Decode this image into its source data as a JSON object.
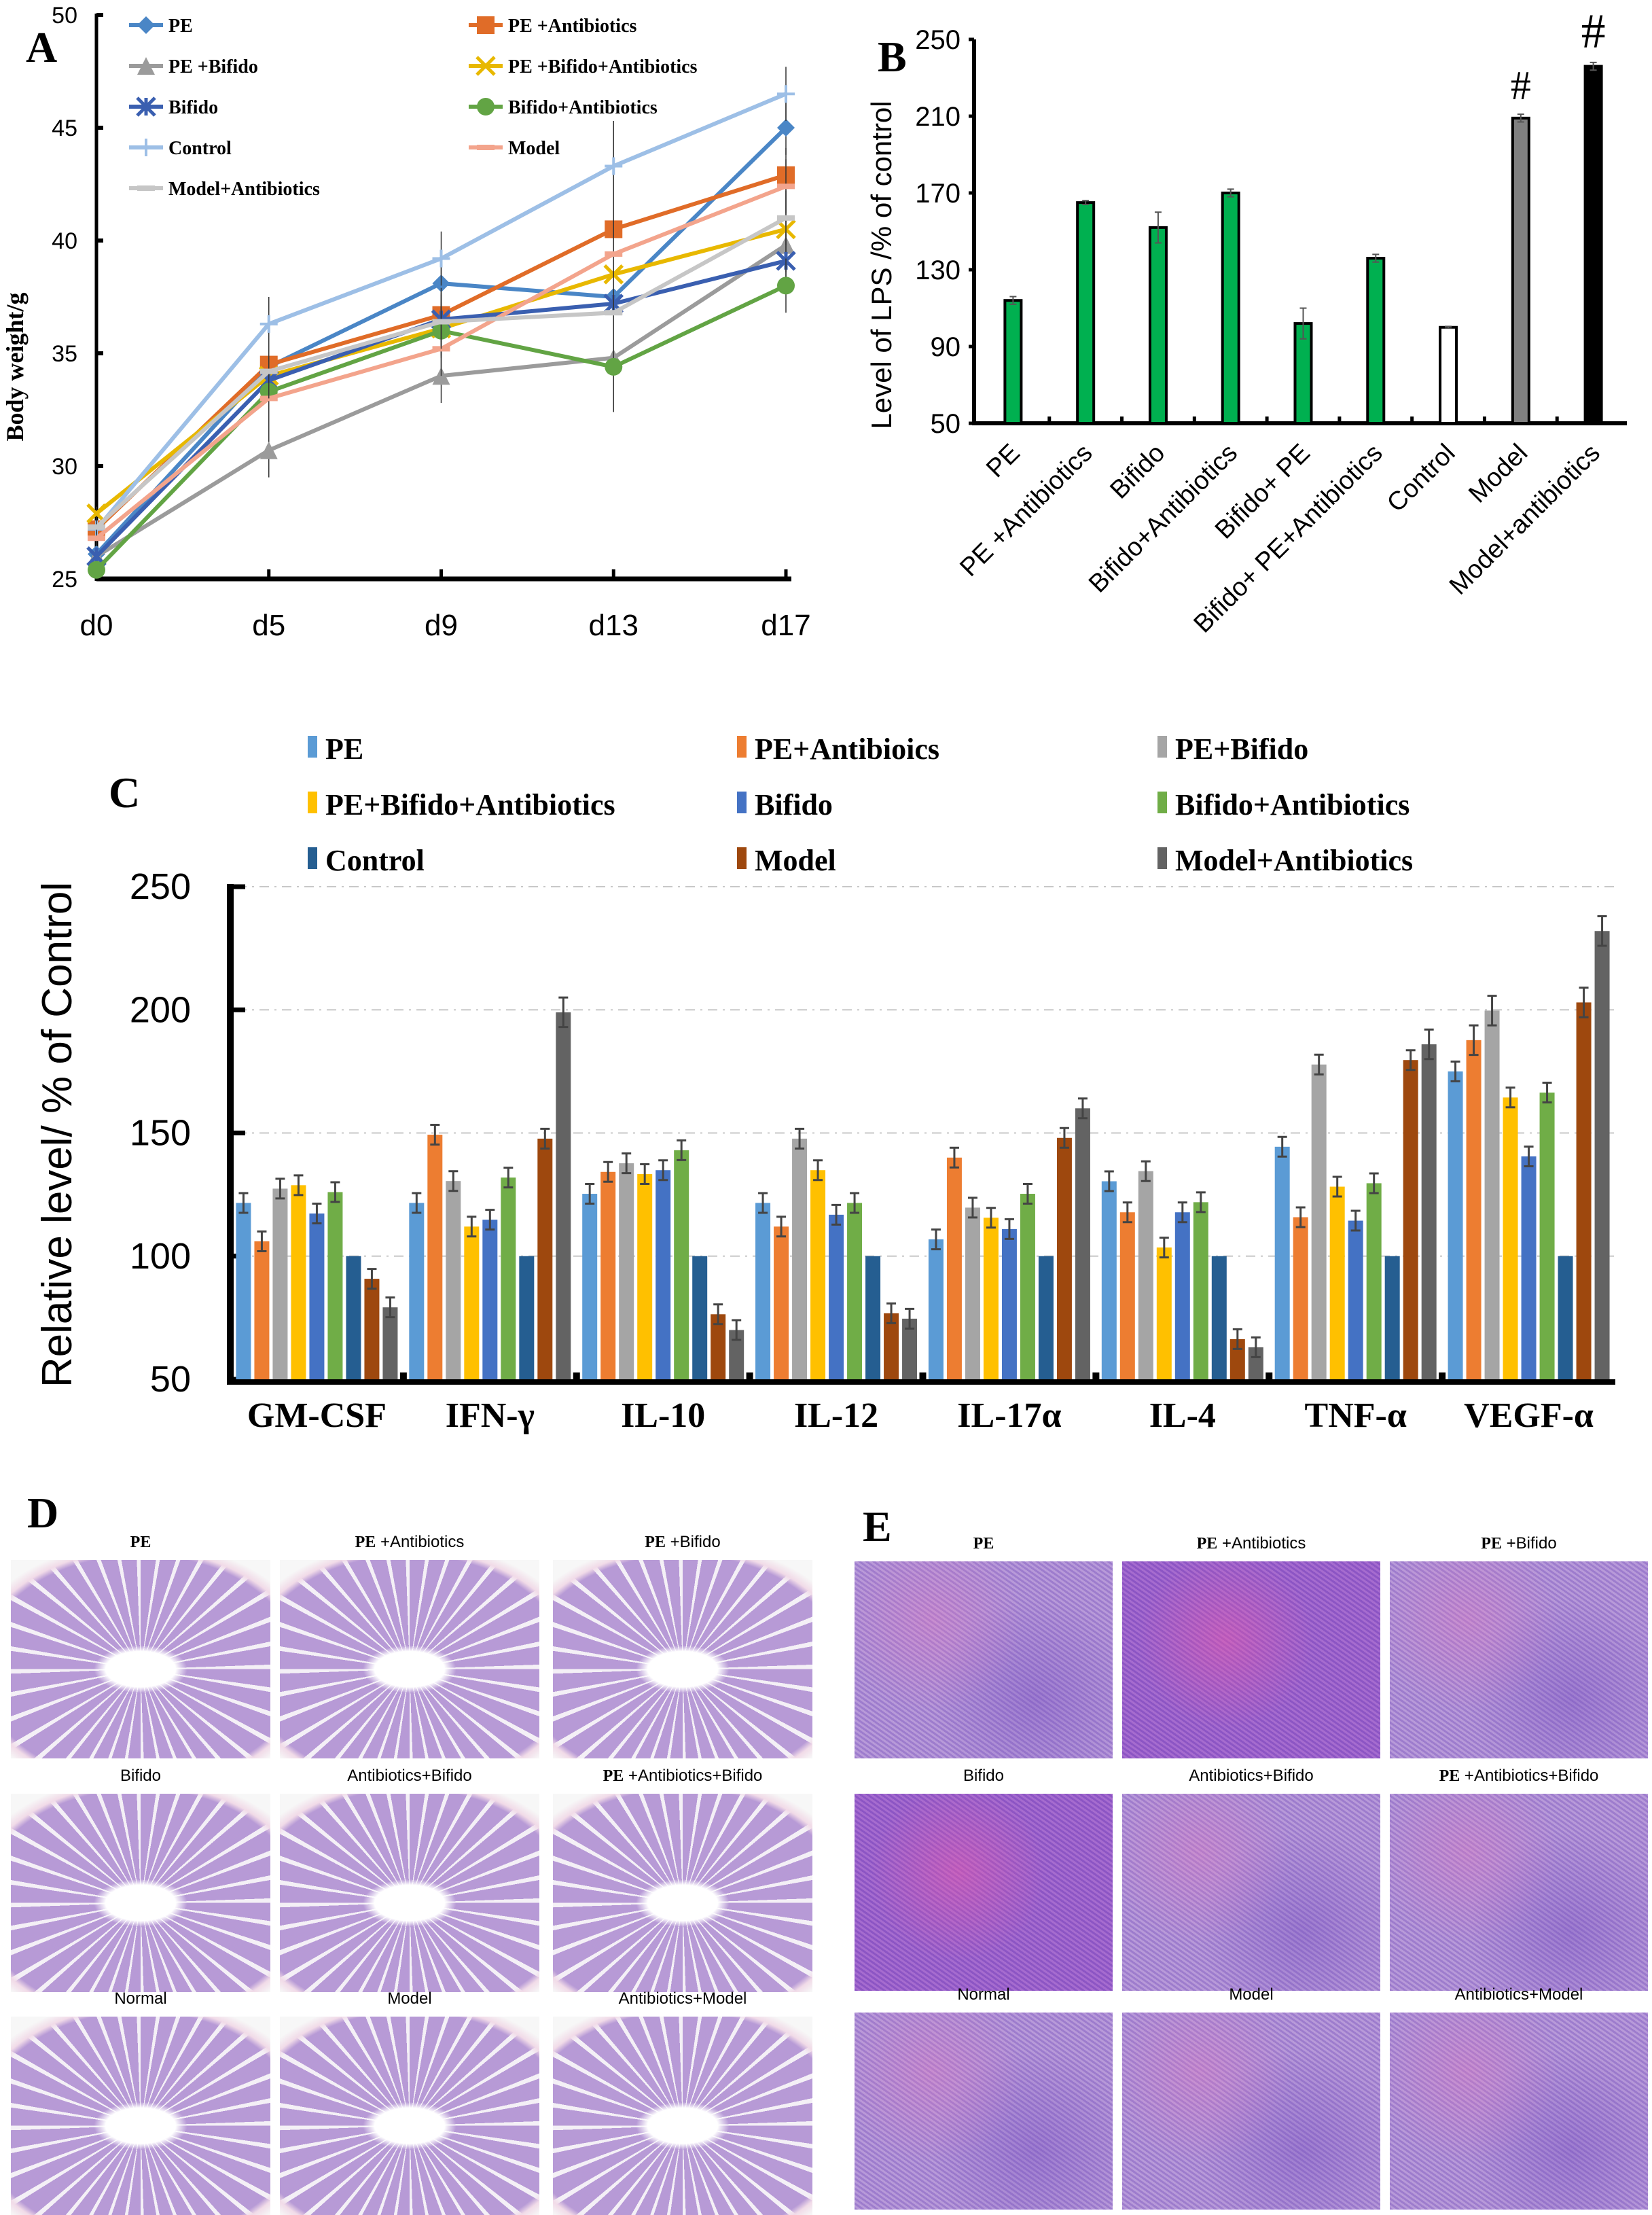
{
  "figure": {
    "panel_letters": [
      "A",
      "B",
      "C",
      "D",
      "E"
    ]
  },
  "chart_data": [
    {
      "id": "A",
      "type": "line",
      "title": "",
      "xlabel": "",
      "ylabel": "Body weight/g",
      "categories": [
        "d0",
        "d5",
        "d9",
        "d13",
        "d17"
      ],
      "ylim": [
        25,
        50
      ],
      "yticks": [
        25,
        30,
        35,
        40,
        45,
        50
      ],
      "grid": false,
      "legend_position": "top-left",
      "series": [
        {
          "name": "PE",
          "color": "#4a86c6",
          "marker": "diamond",
          "values": [
            26.1,
            34.4,
            38.1,
            37.5,
            45.0
          ]
        },
        {
          "name": "PE +Antibiotics",
          "color": "#e06c28",
          "marker": "square",
          "values": [
            27.2,
            34.5,
            36.7,
            40.5,
            42.9
          ]
        },
        {
          "name": "PE +Bifido",
          "color": "#9b9b9b",
          "marker": "triangle",
          "values": [
            26.0,
            30.7,
            34.0,
            34.8,
            39.8
          ]
        },
        {
          "name": "PE +Bifido+Antibiotics",
          "color": "#e8b800",
          "marker": "x",
          "values": [
            27.9,
            34.0,
            36.1,
            38.5,
            40.5
          ]
        },
        {
          "name": "Bifido",
          "color": "#3a5fb0",
          "marker": "star",
          "values": [
            26.0,
            33.8,
            36.5,
            37.2,
            39.1
          ]
        },
        {
          "name": "Bifido+Antibiotics",
          "color": "#62a444",
          "marker": "circle",
          "values": [
            25.4,
            33.3,
            36.0,
            34.4,
            38.0
          ]
        },
        {
          "name": "Control",
          "color": "#9dbfe6",
          "marker": "plus",
          "values": [
            27.2,
            36.3,
            39.2,
            43.3,
            46.5
          ]
        },
        {
          "name": "Model",
          "color": "#f3a48c",
          "marker": "dash",
          "values": [
            26.8,
            33.0,
            35.2,
            39.4,
            42.4
          ]
        },
        {
          "name": "Model+Antibiotics",
          "color": "#c6c6c6",
          "marker": "dash",
          "values": [
            27.3,
            34.2,
            36.4,
            36.8,
            41.0
          ]
        }
      ]
    },
    {
      "id": "B",
      "type": "bar",
      "title": "",
      "xlabel": "",
      "ylabel": "Level of LPS /% of control",
      "categories": [
        "PE",
        "PE +Antibiotics",
        "Bifido",
        "Bifido+Antibiotics",
        "Bifido+  PE",
        "Bifido+  PE+Antibiotics",
        "Control",
        "Model",
        "Model+antibiotics"
      ],
      "values": [
        114,
        165,
        152,
        170,
        102,
        136,
        100,
        209,
        236
      ],
      "errors": [
        2,
        1,
        8,
        2,
        8,
        2,
        0.5,
        2,
        2
      ],
      "bar_colors": [
        "#00b050",
        "#00b050",
        "#00b050",
        "#00b050",
        "#00b050",
        "#00b050",
        "#ffffff",
        "#808080",
        "#000000"
      ],
      "annotations": [
        "",
        "",
        "",
        "",
        "",
        "",
        "",
        "#",
        "#"
      ],
      "ylim": [
        50,
        250
      ],
      "yticks": [
        50,
        90,
        130,
        170,
        210,
        250
      ],
      "grid": false
    },
    {
      "id": "C",
      "type": "bar",
      "title": "",
      "xlabel": "",
      "ylabel": "Relative level/ % of Control",
      "categories": [
        "GM-CSF",
        "IFN-γ",
        "IL-10",
        "IL-12",
        "IL-17α",
        "IL-4",
        "TNF-α",
        "VEGF-α"
      ],
      "ylim": [
        50,
        250
      ],
      "yticks": [
        50,
        100,
        150,
        200,
        250
      ],
      "grid": true,
      "legend_position": "top",
      "series": [
        {
          "name": "PE",
          "color": "#5b9bd5",
          "values": [
            121.6,
            121.6,
            125.3,
            121.6,
            106.8,
            130.4,
            144.4,
            175.0
          ]
        },
        {
          "name": "PE+Antibioics",
          "color": "#ed7d31",
          "values": [
            106.0,
            149.3,
            134.2,
            112.0,
            140.0,
            117.8,
            115.8,
            187.7
          ]
        },
        {
          "name": "PE+Bifido",
          "color": "#a5a5a5",
          "values": [
            127.4,
            130.5,
            137.7,
            147.7,
            119.7,
            134.5,
            177.8,
            199.7
          ]
        },
        {
          "name": "PE+Bifido+Antibiotics",
          "color": "#ffc000",
          "values": [
            128.8,
            112.0,
            133.3,
            134.9,
            115.6,
            103.5,
            128.2,
            164.4
          ]
        },
        {
          "name": "Bifido",
          "color": "#4472c4",
          "values": [
            117.3,
            114.8,
            134.9,
            116.8,
            111.0,
            117.8,
            114.4,
            140.5
          ]
        },
        {
          "name": "Bifido+Antibiotics",
          "color": "#70ad47",
          "values": [
            126.0,
            131.9,
            143.0,
            121.6,
            125.3,
            121.9,
            129.6,
            166.4
          ]
        },
        {
          "name": "Control",
          "color": "#255e91",
          "values": [
            100,
            100,
            100,
            100,
            100,
            100,
            100,
            100
          ]
        },
        {
          "name": "Model",
          "color": "#9e480e",
          "values": [
            90.8,
            147.7,
            76.4,
            76.8,
            148.0,
            66.3,
            179.6,
            203.0
          ]
        },
        {
          "name": "Model+Antibiotics",
          "color": "#636363",
          "values": [
            79.2,
            199.0,
            70.0,
            74.6,
            160.0,
            63.0,
            186.0,
            232.0
          ]
        }
      ]
    }
  ],
  "panel_d": {
    "letter": "D",
    "images": [
      {
        "label_serif": "PE",
        "label_sans": ""
      },
      {
        "label_serif": "PE",
        "label_sans": " +Antibiotics"
      },
      {
        "label_serif": "PE",
        "label_sans": " +Bifido"
      },
      {
        "label_serif": "",
        "label_sans": "Bifido"
      },
      {
        "label_serif": "",
        "label_sans": "Antibiotics+Bifido"
      },
      {
        "label_serif": "PE",
        "label_sans": " +Antibiotics+Bifido"
      },
      {
        "label_serif": "",
        "label_sans": "Normal"
      },
      {
        "label_serif": "",
        "label_sans": "Model"
      },
      {
        "label_serif": "",
        "label_sans": "Antibiotics+Model"
      }
    ]
  },
  "panel_e": {
    "letter": "E",
    "images": [
      {
        "label_serif": "PE",
        "label_sans": ""
      },
      {
        "label_serif": "PE",
        "label_sans": " +Antibiotics"
      },
      {
        "label_serif": "PE",
        "label_sans": " +Bifido"
      },
      {
        "label_serif": "",
        "label_sans": "Bifido"
      },
      {
        "label_serif": "",
        "label_sans": "Antibiotics+Bifido"
      },
      {
        "label_serif": "PE",
        "label_sans": " +Antibiotics+Bifido"
      },
      {
        "label_serif": "",
        "label_sans": "Normal"
      },
      {
        "label_serif": "",
        "label_sans": "Model"
      },
      {
        "label_serif": "",
        "label_sans": "Antibiotics+Model"
      }
    ]
  }
}
